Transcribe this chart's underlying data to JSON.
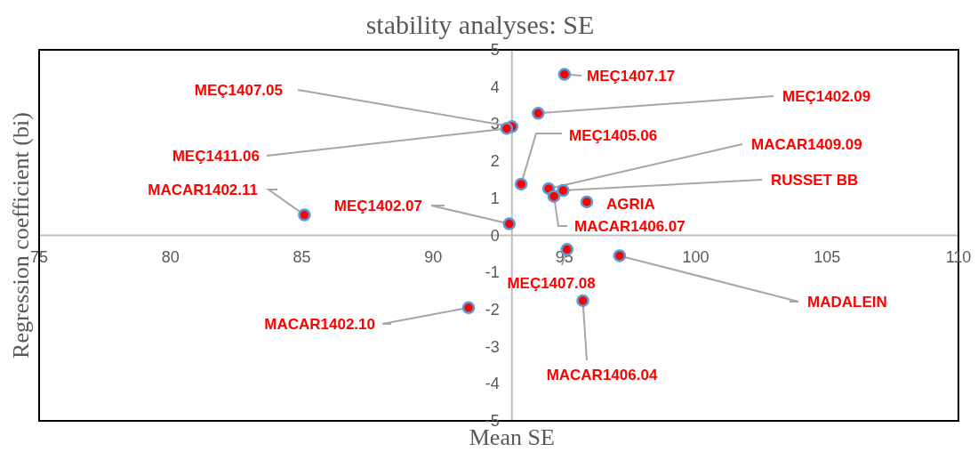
{
  "chart_data": {
    "type": "scatter",
    "title": "stability analyses:  SE",
    "xlabel": "Mean SE",
    "ylabel": "Regression coefficient (bi)",
    "xlim": [
      75,
      110
    ],
    "ylim": [
      -5,
      5
    ],
    "xticks": [
      75,
      80,
      85,
      90,
      95,
      100,
      105,
      110
    ],
    "yticks": [
      -5,
      -4,
      -3,
      -2,
      -1,
      0,
      1,
      2,
      3,
      4,
      5
    ],
    "marker": "circle",
    "series": [
      {
        "color": "#ff0000",
        "x": [
          95.0,
          94.0,
          93.0,
          92.8,
          93.35,
          94.4,
          94.95,
          94.6,
          95.85,
          85.1,
          92.9,
          95.1,
          97.1,
          91.35,
          95.7
        ],
        "values": [
          4.34,
          3.29,
          2.93,
          2.88,
          1.38,
          1.26,
          1.21,
          1.05,
          0.9,
          0.55,
          0.31,
          -0.38,
          -0.55,
          -1.95,
          -1.76
        ]
      }
    ],
    "annotations": [
      {
        "text": "MEÇ1407.17",
        "x": 95.0,
        "y": 4.34
      },
      {
        "text": "MEÇ1402.09",
        "x": 94.0,
        "y": 3.29
      },
      {
        "text": "MEÇ1407.05",
        "x": 93.0,
        "y": 2.93
      },
      {
        "text": "MEÇ1411.06",
        "x": 92.8,
        "y": 2.88
      },
      {
        "text": "MEÇ1405.06",
        "x": 93.35,
        "y": 1.38
      },
      {
        "text": "MACAR1409.09",
        "x": 94.4,
        "y": 1.26
      },
      {
        "text": "RUSSET BB",
        "x": 94.95,
        "y": 1.21
      },
      {
        "text": "MACAR1406.07",
        "x": 94.6,
        "y": 1.05
      },
      {
        "text": "AGRIA",
        "x": 95.85,
        "y": 0.9
      },
      {
        "text": "MACAR1402.11",
        "x": 85.1,
        "y": 0.55
      },
      {
        "text": "MEÇ1402.07",
        "x": 92.9,
        "y": 0.31
      },
      {
        "text": "MEÇ1407.08",
        "x": 95.1,
        "y": -0.38
      },
      {
        "text": "MADALEIN",
        "x": 97.1,
        "y": -0.55
      },
      {
        "text": "MACAR1402.10",
        "x": 91.35,
        "y": -1.95
      },
      {
        "text": "MACAR1406.04",
        "x": 95.7,
        "y": -1.76
      }
    ]
  }
}
